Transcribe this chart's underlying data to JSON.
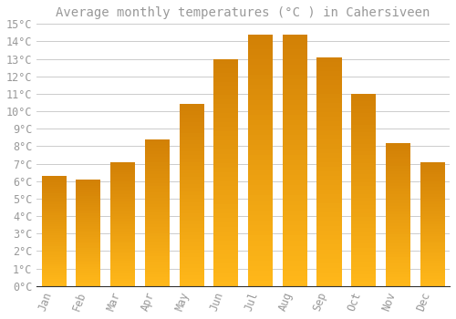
{
  "title": "Average monthly temperatures (°C ) in Cahersiveen",
  "months": [
    "Jan",
    "Feb",
    "Mar",
    "Apr",
    "May",
    "Jun",
    "Jul",
    "Aug",
    "Sep",
    "Oct",
    "Nov",
    "Dec"
  ],
  "values": [
    6.3,
    6.1,
    7.1,
    8.4,
    10.4,
    13.0,
    14.4,
    14.4,
    13.1,
    11.0,
    8.2,
    7.1
  ],
  "bar_color_top": "#FFA500",
  "bar_color_bottom": "#FFD080",
  "background_color": "#FFFFFF",
  "grid_color": "#CCCCCC",
  "text_color": "#999999",
  "axis_color": "#333333",
  "ylim": [
    0,
    15
  ],
  "ytick_step": 1,
  "title_fontsize": 10,
  "tick_fontsize": 8.5,
  "font_family": "monospace"
}
